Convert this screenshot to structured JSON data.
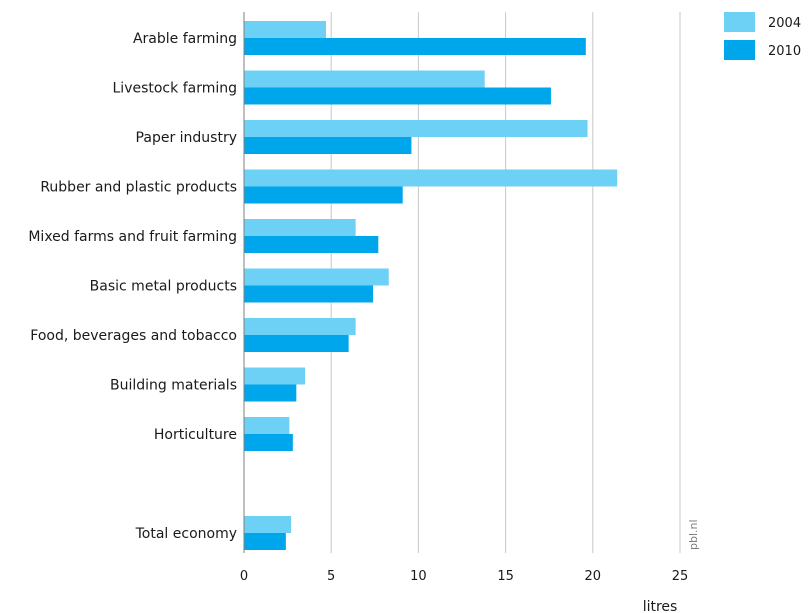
{
  "chart_data": {
    "type": "bar",
    "orientation": "horizontal",
    "categories": [
      "Arable farming",
      "Livestock farming",
      "Paper industry",
      "Rubber and plastic products",
      "Mixed farms and fruit farming",
      "Basic metal products",
      "Food, beverages and tobacco",
      "Building materials",
      "Horticulture",
      "Total economy"
    ],
    "gap_before_last": true,
    "series": [
      {
        "name": "2004",
        "color": "#6dd0f5",
        "values": [
          4.7,
          13.8,
          19.7,
          21.4,
          6.4,
          8.3,
          6.4,
          3.5,
          2.6,
          2.7
        ]
      },
      {
        "name": "2010",
        "color": "#00a6eb",
        "values": [
          19.6,
          17.6,
          9.6,
          9.1,
          7.7,
          7.4,
          6.0,
          3.0,
          2.8,
          2.4
        ]
      }
    ],
    "xlabel": "litres",
    "xlim": [
      0,
      25
    ],
    "xticks": [
      0,
      5,
      10,
      15,
      20,
      25
    ],
    "grid": true,
    "legend_position": "top-right",
    "watermark": "pbl.nl"
  }
}
